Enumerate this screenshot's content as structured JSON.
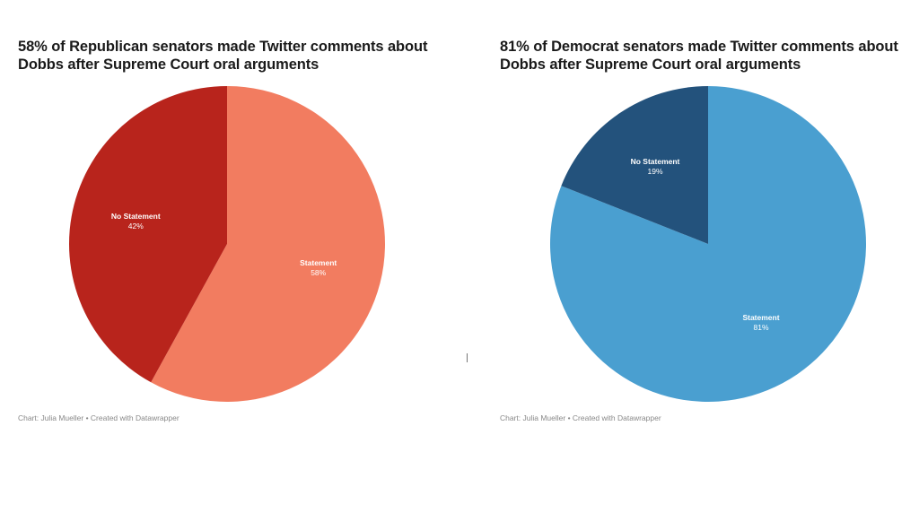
{
  "chart_data": [
    {
      "type": "pie",
      "title": "58% of Republican senators made Twitter comments about Dobbs after Supreme Court oral arguments",
      "slices": [
        {
          "label": "Statement",
          "value": 58,
          "value_label": "58%",
          "color": "#f27c60"
        },
        {
          "label": "No Statement",
          "value": 42,
          "value_label": "42%",
          "color": "#b8241c"
        }
      ],
      "source": "Chart: Julia Mueller • Created with Datawrapper"
    },
    {
      "type": "pie",
      "title": "81% of Democrat senators made Twitter comments about Dobbs after Supreme Court oral arguments",
      "slices": [
        {
          "label": "Statement",
          "value": 81,
          "value_label": "81%",
          "color": "#4a9fd0"
        },
        {
          "label": "No Statement",
          "value": 19,
          "value_label": "19%",
          "color": "#23527c"
        }
      ],
      "source": "Chart: Julia Mueller • Created with Datawrapper"
    }
  ]
}
